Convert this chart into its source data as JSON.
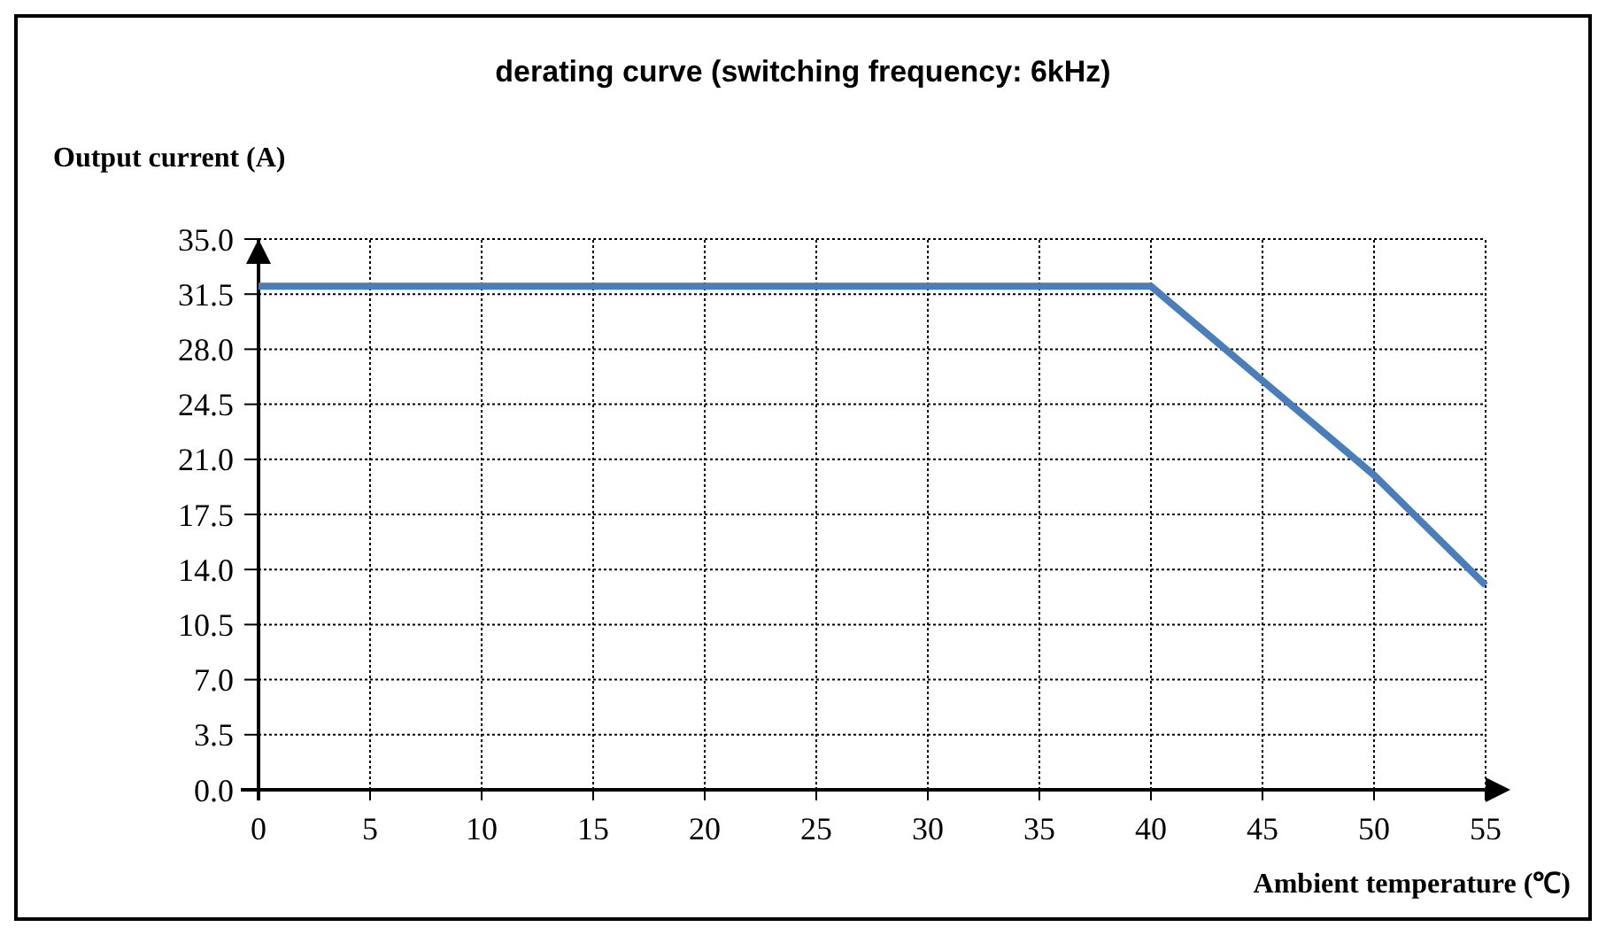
{
  "chart_data": {
    "type": "line",
    "title": "derating curve (switching frequency: 6kHz)",
    "xlabel": "Ambient temperature (℃)",
    "ylabel": "Output current (A)",
    "x": [
      0,
      40,
      50,
      55
    ],
    "series": [
      {
        "color": "#4a7ebb",
        "values": [
          32,
          32,
          20,
          13
        ]
      }
    ],
    "xlim": [
      0,
      55
    ],
    "xticks": [
      0,
      5,
      10,
      15,
      20,
      25,
      30,
      35,
      40,
      45,
      50,
      55
    ],
    "ylim": [
      0,
      35
    ],
    "yticks": [
      {
        "value": 0,
        "label": "0.0"
      },
      {
        "value": 3.5,
        "label": "3.5"
      },
      {
        "value": 7,
        "label": "7.0"
      },
      {
        "value": 10.5,
        "label": "10.5"
      },
      {
        "value": 14,
        "label": "14.0"
      },
      {
        "value": 17.5,
        "label": "17.5"
      },
      {
        "value": 21,
        "label": "21.0"
      },
      {
        "value": 24.5,
        "label": "24.5"
      },
      {
        "value": 28,
        "label": "28.0"
      },
      {
        "value": 31.5,
        "label": "31.5"
      },
      {
        "value": 35,
        "label": "35.0"
      }
    ],
    "grid": true,
    "marker": "none",
    "line_style": "solid"
  }
}
